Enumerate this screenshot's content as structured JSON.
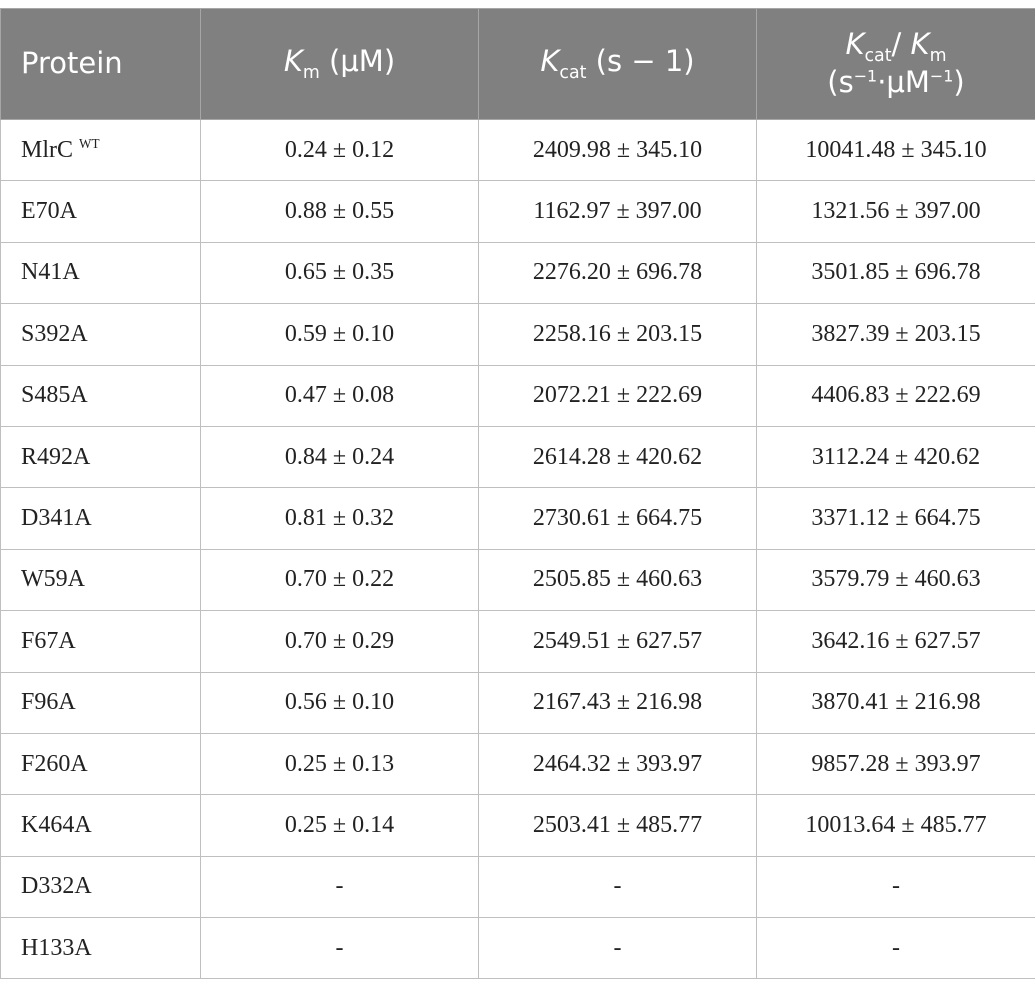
{
  "table": {
    "header": [
      [
        "Protein"
      ],
      [
        "K",
        "m",
        " (μM)"
      ],
      [
        "K",
        "cat",
        " (s − 1)"
      ],
      [
        "K",
        "cat",
        "/ ",
        "K",
        "m",
        "(s",
        "−1",
        "·μM",
        "−1",
        ")"
      ]
    ],
    "rows": [
      {
        "protein": [
          "MlrC",
          "WT"
        ],
        "values": [
          "0.24 ± 0.12",
          "2409.98 ± 345.10",
          "10041.48 ± 345.10"
        ]
      },
      {
        "protein": [
          "E70A"
        ],
        "values": [
          "0.88 ± 0.55",
          "1162.97 ± 397.00",
          "1321.56 ± 397.00"
        ]
      },
      {
        "protein": [
          "N41A"
        ],
        "values": [
          "0.65 ± 0.35",
          "2276.20 ± 696.78",
          "3501.85 ± 696.78"
        ]
      },
      {
        "protein": [
          "S392A"
        ],
        "values": [
          "0.59 ± 0.10",
          "2258.16 ± 203.15",
          "3827.39 ± 203.15"
        ]
      },
      {
        "protein": [
          "S485A"
        ],
        "values": [
          "0.47 ± 0.08",
          "2072.21 ± 222.69",
          "4406.83 ± 222.69"
        ]
      },
      {
        "protein": [
          "R492A"
        ],
        "values": [
          "0.84 ± 0.24",
          "2614.28 ± 420.62",
          "3112.24 ± 420.62"
        ]
      },
      {
        "protein": [
          "D341A"
        ],
        "values": [
          "0.81 ± 0.32",
          "2730.61 ± 664.75",
          "3371.12 ± 664.75"
        ]
      },
      {
        "protein": [
          "W59A"
        ],
        "values": [
          "0.70 ± 0.22",
          "2505.85 ± 460.63",
          "3579.79 ± 460.63"
        ]
      },
      {
        "protein": [
          "F67A"
        ],
        "values": [
          "0.70 ± 0.29",
          "2549.51 ± 627.57",
          "3642.16 ± 627.57"
        ]
      },
      {
        "protein": [
          "F96A"
        ],
        "values": [
          "0.56 ± 0.10",
          "2167.43 ± 216.98",
          "3870.41 ± 216.98"
        ]
      },
      {
        "protein": [
          "F260A"
        ],
        "values": [
          "0.25 ± 0.13",
          "2464.32 ± 393.97",
          "9857.28 ± 393.97"
        ]
      },
      {
        "protein": [
          "K464A"
        ],
        "values": [
          "0.25 ± 0.14",
          "2503.41 ± 485.77",
          "10013.64 ± 485.77"
        ]
      },
      {
        "protein": [
          "D332A"
        ],
        "values": [
          "-",
          "-",
          "-"
        ]
      },
      {
        "protein": [
          "H133A"
        ],
        "values": [
          "-",
          "-",
          "-"
        ]
      }
    ]
  }
}
